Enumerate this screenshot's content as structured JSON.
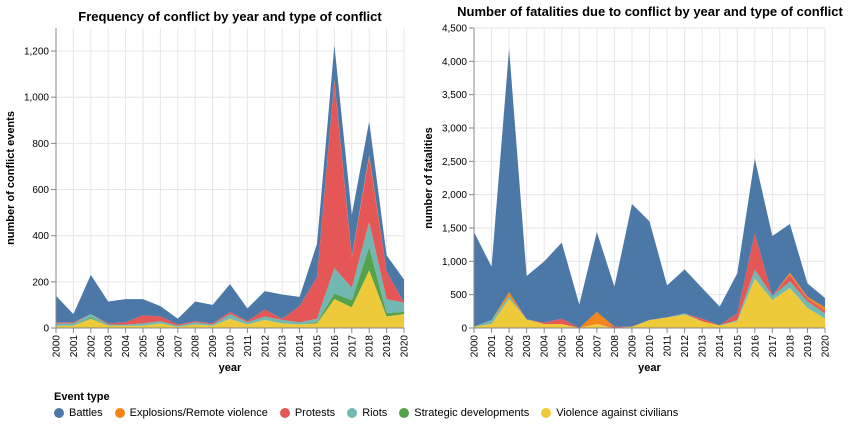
{
  "chart_data": [
    {
      "type": "area",
      "title": "Frequency of conflict by year and type of conflict",
      "xlabel": "year",
      "ylabel": "number of conflict events",
      "ylim": [
        0,
        1300
      ],
      "yticks": [
        0,
        200,
        400,
        600,
        800,
        1000,
        1200
      ],
      "ytick_labels": [
        "0",
        "200",
        "400",
        "600",
        "800",
        "1,000",
        "1,200"
      ],
      "x": [
        "2000",
        "2001",
        "2002",
        "2003",
        "2004",
        "2005",
        "2006",
        "2007",
        "2008",
        "2009",
        "2010",
        "2011",
        "2012",
        "2013",
        "2014",
        "2015",
        "2016",
        "2017",
        "2018",
        "2019",
        "2020"
      ],
      "stacked": true,
      "grid": true,
      "series": [
        {
          "name": "Violence against civilians",
          "values": [
            10,
            10,
            40,
            10,
            10,
            10,
            20,
            5,
            15,
            10,
            40,
            15,
            35,
            20,
            15,
            20,
            125,
            90,
            250,
            50,
            60
          ]
        },
        {
          "name": "Strategic developments",
          "values": [
            0,
            0,
            5,
            0,
            0,
            0,
            0,
            0,
            0,
            0,
            0,
            0,
            0,
            0,
            0,
            5,
            25,
            30,
            100,
            15,
            10
          ]
        },
        {
          "name": "Riots",
          "values": [
            10,
            10,
            15,
            5,
            5,
            10,
            10,
            5,
            10,
            5,
            20,
            10,
            15,
            15,
            10,
            15,
            110,
            55,
            110,
            60,
            40
          ]
        },
        {
          "name": "Protests",
          "values": [
            5,
            5,
            0,
            5,
            10,
            35,
            20,
            5,
            5,
            5,
            10,
            5,
            30,
            5,
            70,
            180,
            810,
            130,
            280,
            120,
            0
          ]
        },
        {
          "name": "Explosions/Remote violence",
          "values": [
            0,
            0,
            0,
            0,
            0,
            0,
            0,
            0,
            0,
            0,
            0,
            0,
            0,
            0,
            0,
            0,
            5,
            5,
            10,
            0,
            0
          ]
        },
        {
          "name": "Battles",
          "values": [
            115,
            35,
            170,
            95,
            100,
            70,
            45,
            25,
            85,
            80,
            120,
            55,
            80,
            105,
            40,
            145,
            150,
            180,
            145,
            70,
            100
          ]
        }
      ]
    },
    {
      "type": "area",
      "title": "Number of fatalities due to conflict by year and type of conflict",
      "xlabel": "year",
      "ylabel": "number of fatalities",
      "ylim": [
        0,
        4500
      ],
      "yticks": [
        0,
        500,
        1000,
        1500,
        2000,
        2500,
        3000,
        3500,
        4000,
        4500
      ],
      "ytick_labels": [
        "0",
        "500",
        "1,000",
        "1,500",
        "2,000",
        "2,500",
        "3,000",
        "3,500",
        "4,000",
        "4,500"
      ],
      "x": [
        "2000",
        "2001",
        "2002",
        "2003",
        "2004",
        "2005",
        "2006",
        "2007",
        "2008",
        "2009",
        "2010",
        "2011",
        "2012",
        "2013",
        "2014",
        "2015",
        "2016",
        "2017",
        "2018",
        "2019",
        "2020"
      ],
      "stacked": true,
      "grid": true,
      "series": [
        {
          "name": "Violence against civilians",
          "values": [
            20,
            60,
            440,
            130,
            60,
            60,
            0,
            60,
            0,
            20,
            120,
            160,
            200,
            100,
            40,
            100,
            740,
            420,
            600,
            300,
            140
          ]
        },
        {
          "name": "Strategic developments",
          "values": [
            0,
            0,
            0,
            0,
            0,
            0,
            0,
            0,
            0,
            0,
            0,
            0,
            0,
            0,
            0,
            0,
            0,
            0,
            0,
            0,
            0
          ]
        },
        {
          "name": "Riots",
          "values": [
            0,
            60,
            40,
            0,
            0,
            0,
            0,
            0,
            0,
            0,
            0,
            0,
            20,
            0,
            0,
            20,
            140,
            60,
            100,
            100,
            80
          ]
        },
        {
          "name": "Protests",
          "values": [
            0,
            0,
            0,
            0,
            20,
            80,
            0,
            0,
            20,
            0,
            0,
            0,
            0,
            40,
            0,
            100,
            540,
            0,
            100,
            40,
            40
          ]
        },
        {
          "name": "Explosions/Remote violence",
          "values": [
            0,
            0,
            60,
            0,
            0,
            0,
            0,
            180,
            0,
            0,
            0,
            0,
            0,
            0,
            0,
            0,
            0,
            0,
            30,
            30,
            50
          ]
        },
        {
          "name": "Battles",
          "values": [
            1420,
            800,
            3650,
            650,
            920,
            1140,
            350,
            1200,
            600,
            1840,
            1480,
            480,
            660,
            460,
            280,
            600,
            1120,
            900,
            730,
            200,
            140
          ]
        }
      ]
    }
  ],
  "legend": {
    "title": "Event type",
    "items": [
      {
        "label": "Battles",
        "color": "#4c78a8"
      },
      {
        "label": "Explosions/Remote violence",
        "color": "#f58518"
      },
      {
        "label": "Protests",
        "color": "#e45756"
      },
      {
        "label": "Riots",
        "color": "#72b7b2"
      },
      {
        "label": "Strategic developments",
        "color": "#54a24b"
      },
      {
        "label": "Violence against civilians",
        "color": "#eeca3b"
      }
    ]
  }
}
